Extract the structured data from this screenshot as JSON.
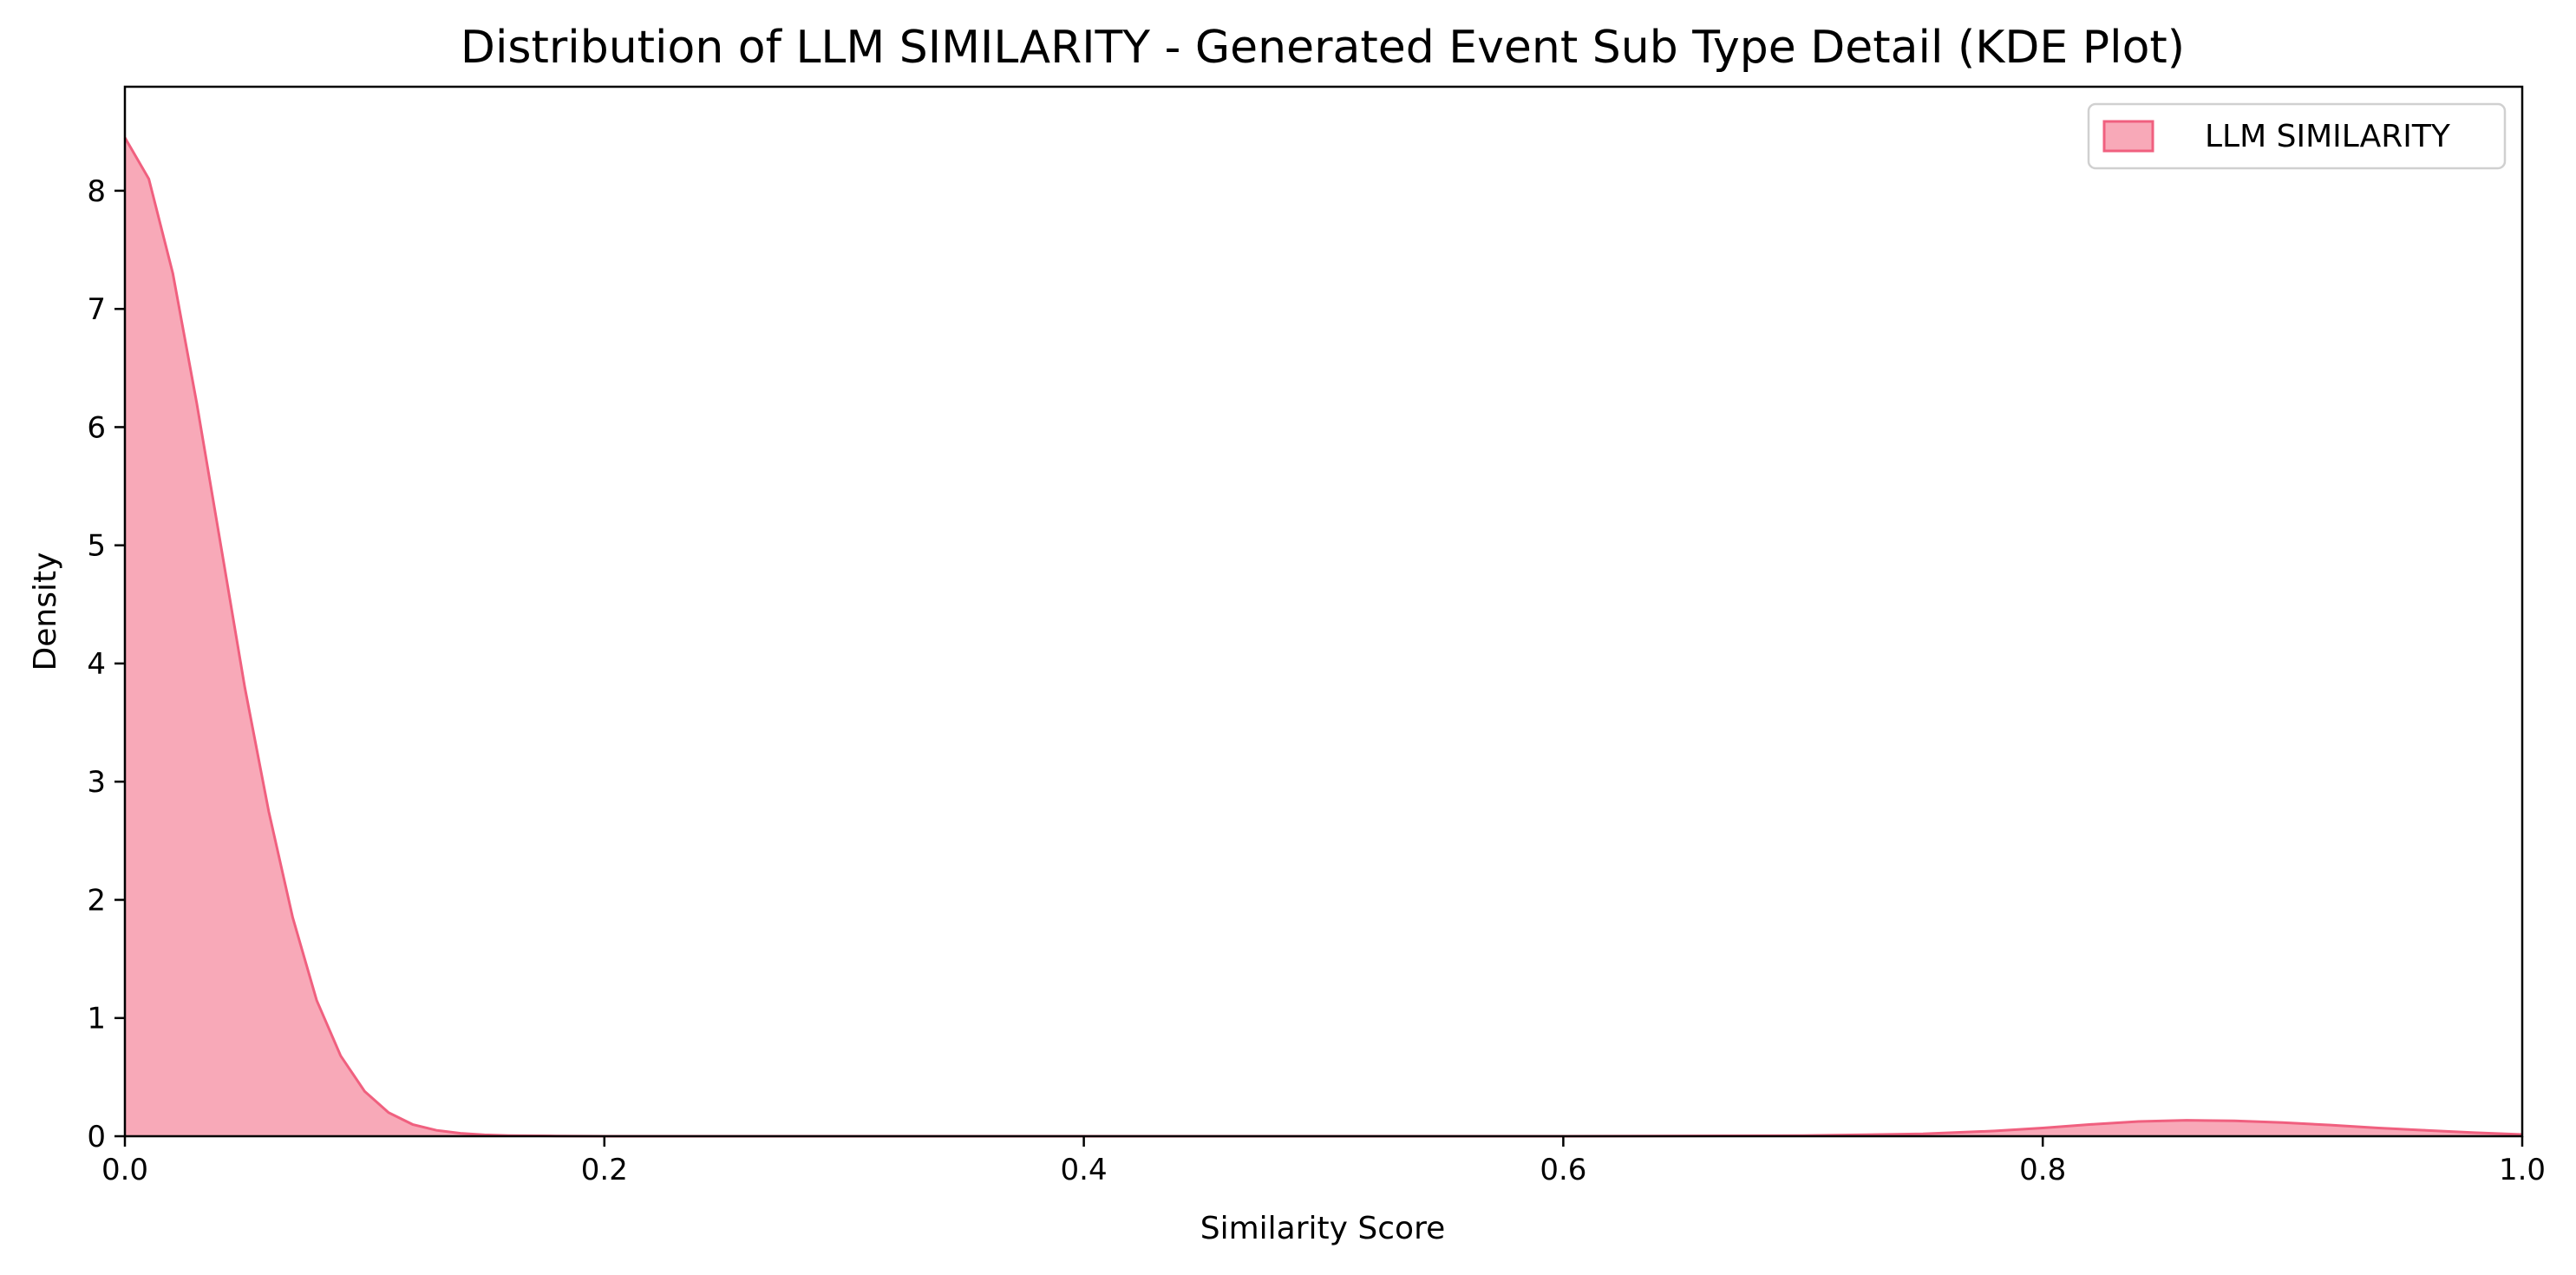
{
  "chart_data": {
    "type": "area",
    "title": "Distribution of LLM SIMILARITY - Generated Event Sub Type Detail (KDE Plot)",
    "xlabel": "Similarity Score",
    "ylabel": "Density",
    "xlim": [
      0.0,
      1.0
    ],
    "ylim": [
      0,
      8.88
    ],
    "xticks": [
      0.0,
      0.2,
      0.4,
      0.6,
      0.8,
      1.0
    ],
    "xtick_labels": [
      "0.0",
      "0.2",
      "0.4",
      "0.6",
      "0.8",
      "1.0"
    ],
    "yticks": [
      0,
      1,
      2,
      3,
      4,
      5,
      6,
      7,
      8
    ],
    "ytick_labels": [
      "0",
      "1",
      "2",
      "3",
      "4",
      "5",
      "6",
      "7",
      "8"
    ],
    "grid": false,
    "legend": {
      "position": "top-right"
    },
    "series": [
      {
        "name": "LLM SIMILARITY",
        "fill_color": "#f8a9b8",
        "line_color": "#f0607f",
        "x": [
          0.0,
          0.01,
          0.02,
          0.03,
          0.04,
          0.05,
          0.06,
          0.07,
          0.08,
          0.09,
          0.1,
          0.11,
          0.12,
          0.13,
          0.14,
          0.15,
          0.16,
          0.18,
          0.2,
          0.25,
          0.3,
          0.4,
          0.5,
          0.6,
          0.7,
          0.75,
          0.78,
          0.8,
          0.82,
          0.84,
          0.86,
          0.88,
          0.9,
          0.92,
          0.94,
          0.96,
          0.98,
          1.0
        ],
        "y": [
          8.45,
          8.1,
          7.3,
          6.2,
          5.0,
          3.8,
          2.75,
          1.85,
          1.15,
          0.68,
          0.38,
          0.2,
          0.1,
          0.05,
          0.025,
          0.012,
          0.006,
          0.002,
          0.0,
          0.0,
          0.0,
          0.0,
          0.0,
          0.0,
          0.005,
          0.02,
          0.045,
          0.07,
          0.1,
          0.125,
          0.135,
          0.13,
          0.115,
          0.095,
          0.07,
          0.05,
          0.03,
          0.015
        ]
      }
    ]
  }
}
